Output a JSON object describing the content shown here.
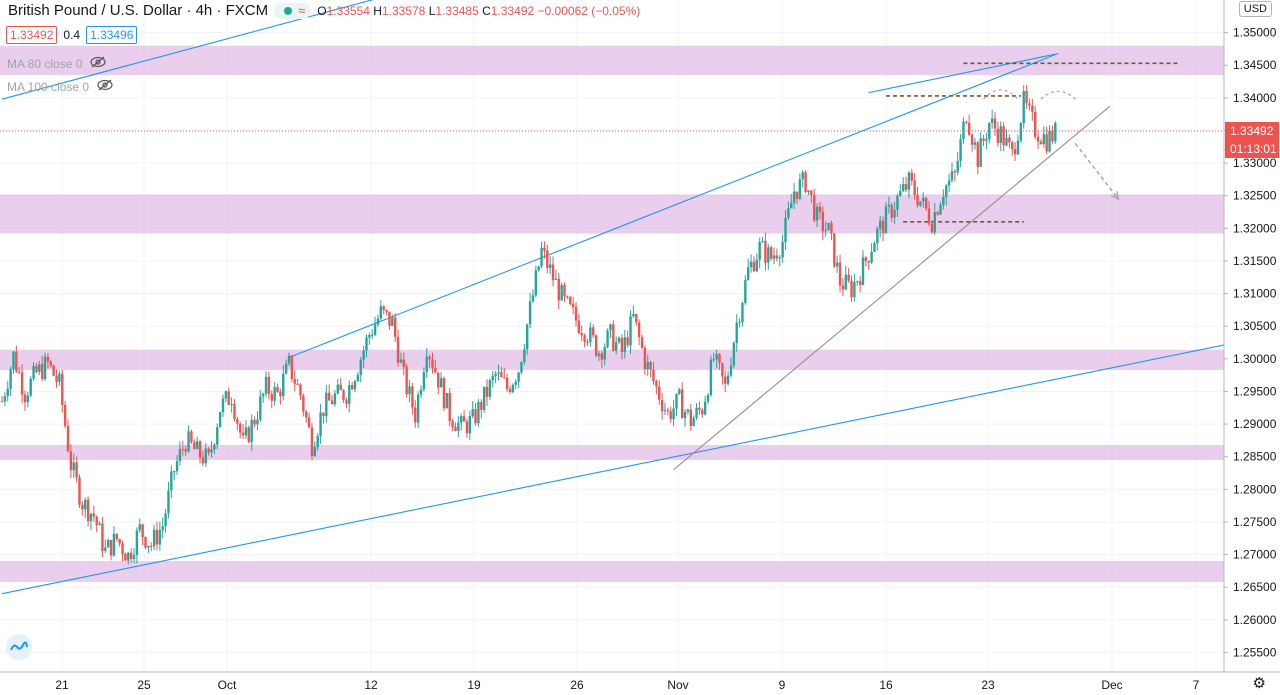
{
  "header": {
    "symbol": "British Pound / U.S. Dollar · 4h · FXCM",
    "ohlc": {
      "o_label": "O",
      "o": "1.33554",
      "h_label": "H",
      "h": "1.33578",
      "l_label": "L",
      "l": "1.33485",
      "c_label": "C",
      "c": "1.33492",
      "change": "−0.00062 (−0.05%)"
    },
    "bid": "1.33492",
    "spread": "0.4",
    "ask": "1.33496",
    "indicators": [
      {
        "label": "MA 80 close 0"
      },
      {
        "label": "MA 100 close 0"
      }
    ],
    "currency": "USD"
  },
  "chart_data": {
    "type": "candlestick",
    "y_axis": {
      "range": [
        1.252,
        1.355
      ],
      "ticks": [
        "1.35000",
        "1.34500",
        "1.34000",
        "1.33500",
        "1.33000",
        "1.32500",
        "1.32000",
        "1.31500",
        "1.31000",
        "1.30500",
        "1.30000",
        "1.29500",
        "1.29000",
        "1.28500",
        "1.28000",
        "1.27500",
        "1.27000",
        "1.26500",
        "1.26000",
        "1.25500"
      ]
    },
    "x_axis": {
      "ticks": [
        "21",
        "25",
        "Oct",
        "12",
        "19",
        "26",
        "Nov",
        "9",
        "16",
        "23",
        "Dec",
        "7"
      ]
    },
    "last_price": {
      "value": "1.33492",
      "countdown": "01:13:01",
      "color": "#ef5350"
    },
    "colors": {
      "up": "#26a69a",
      "down": "#ef5350",
      "zone": "#e1bee7",
      "channel": "#2196f3",
      "trend": "#a1887f",
      "level": "#6d5a3a",
      "projection": "#9e9e9e"
    },
    "zones": [
      {
        "from": 1.3435,
        "to": 1.348
      },
      {
        "from": 1.3192,
        "to": 1.3252
      },
      {
        "from": 1.2983,
        "to": 1.3014
      },
      {
        "from": 1.2845,
        "to": 1.2868
      },
      {
        "from": 1.2658,
        "to": 1.269
      }
    ],
    "levels": [
      {
        "day": 33.5,
        "to_day": 41.0,
        "price": 1.3453
      },
      {
        "day": 30.8,
        "to_day": 35.5,
        "price": 1.3403
      },
      {
        "day": 31.4,
        "to_day": 35.6,
        "price": 1.321
      }
    ],
    "channel_lines": [
      {
        "x1": 0.0,
        "y1": 1.3398,
        "x2": 15.0,
        "y2": 1.3575
      },
      {
        "x1": 0.0,
        "y1": 1.264,
        "x2": 43.0,
        "y2": 1.3025
      },
      {
        "x1": 10.0,
        "y1": 1.3002,
        "x2": 36.8,
        "y2": 1.3468
      },
      {
        "x1": 30.2,
        "y1": 1.3408,
        "x2": 36.7,
        "y2": 1.3467
      }
    ],
    "trend_lines": [
      {
        "x1": 23.4,
        "y1": 1.283,
        "x2": 38.6,
        "y2": 1.3387
      }
    ],
    "projection": {
      "x1": 37.4,
      "y1": 1.333,
      "x2": 38.9,
      "y2": 1.3245
    },
    "arcs": [
      {
        "from": 34.2,
        "to": 35.4,
        "peak": 1.3414
      },
      {
        "from": 36.2,
        "to": 37.4,
        "peak": 1.341
      }
    ],
    "series": [
      {
        "day": 0,
        "price": 1.2935
      },
      {
        "day": 0.4,
        "price": 1.3005
      },
      {
        "day": 0.8,
        "price": 1.2948
      },
      {
        "day": 1.2,
        "price": 1.2978
      },
      {
        "day": 1.6,
        "price": 1.2992
      },
      {
        "day": 2.0,
        "price": 1.296
      },
      {
        "day": 2.4,
        "price": 1.2838
      },
      {
        "day": 2.8,
        "price": 1.278
      },
      {
        "day": 3.2,
        "price": 1.276
      },
      {
        "day": 3.6,
        "price": 1.2705
      },
      {
        "day": 4.0,
        "price": 1.2724
      },
      {
        "day": 4.4,
        "price": 1.2698
      },
      {
        "day": 4.8,
        "price": 1.2738
      },
      {
        "day": 5.2,
        "price": 1.2715
      },
      {
        "day": 5.6,
        "price": 1.2745
      },
      {
        "day": 6.0,
        "price": 1.283
      },
      {
        "day": 6.4,
        "price": 1.2875
      },
      {
        "day": 6.8,
        "price": 1.2856
      },
      {
        "day": 7.2,
        "price": 1.2844
      },
      {
        "day": 7.6,
        "price": 1.2925
      },
      {
        "day": 8.0,
        "price": 1.2945
      },
      {
        "day": 8.4,
        "price": 1.2868
      },
      {
        "day": 8.8,
        "price": 1.2908
      },
      {
        "day": 9.2,
        "price": 1.2955
      },
      {
        "day": 9.6,
        "price": 1.2945
      },
      {
        "day": 10.0,
        "price": 1.299
      },
      {
        "day": 10.4,
        "price": 1.2945
      },
      {
        "day": 10.8,
        "price": 1.287
      },
      {
        "day": 11.2,
        "price": 1.2925
      },
      {
        "day": 11.6,
        "price": 1.2942
      },
      {
        "day": 12.0,
        "price": 1.2948
      },
      {
        "day": 12.4,
        "price": 1.299
      },
      {
        "day": 12.8,
        "price": 1.3038
      },
      {
        "day": 13.2,
        "price": 1.307
      },
      {
        "day": 13.6,
        "price": 1.3055
      },
      {
        "day": 14.0,
        "price": 1.297
      },
      {
        "day": 14.4,
        "price": 1.2915
      },
      {
        "day": 14.8,
        "price": 1.3022
      },
      {
        "day": 15.2,
        "price": 1.297
      },
      {
        "day": 15.6,
        "price": 1.2915
      },
      {
        "day": 16.0,
        "price": 1.2895
      },
      {
        "day": 16.4,
        "price": 1.2905
      },
      {
        "day": 16.8,
        "price": 1.294
      },
      {
        "day": 17.2,
        "price": 1.2975
      },
      {
        "day": 17.6,
        "price": 1.2955
      },
      {
        "day": 18.0,
        "price": 1.2985
      },
      {
        "day": 18.4,
        "price": 1.3075
      },
      {
        "day": 18.8,
        "price": 1.3165
      },
      {
        "day": 19.2,
        "price": 1.3125
      },
      {
        "day": 19.6,
        "price": 1.3085
      },
      {
        "day": 20.0,
        "price": 1.306
      },
      {
        "day": 20.4,
        "price": 1.304
      },
      {
        "day": 20.8,
        "price": 1.3012
      },
      {
        "day": 21.2,
        "price": 1.3035
      },
      {
        "day": 21.6,
        "price": 1.301
      },
      {
        "day": 22.0,
        "price": 1.3062
      },
      {
        "day": 22.4,
        "price": 1.2998
      },
      {
        "day": 22.8,
        "price": 1.2955
      },
      {
        "day": 23.2,
        "price": 1.2915
      },
      {
        "day": 23.6,
        "price": 1.2935
      },
      {
        "day": 24.0,
        "price": 1.2905
      },
      {
        "day": 24.4,
        "price": 1.2925
      },
      {
        "day": 24.8,
        "price": 1.3
      },
      {
        "day": 25.2,
        "price": 1.2955
      },
      {
        "day": 25.6,
        "price": 1.3055
      },
      {
        "day": 26.0,
        "price": 1.3135
      },
      {
        "day": 26.4,
        "price": 1.317
      },
      {
        "day": 26.8,
        "price": 1.3155
      },
      {
        "day": 27.2,
        "price": 1.318
      },
      {
        "day": 27.6,
        "price": 1.3258
      },
      {
        "day": 28.0,
        "price": 1.3272
      },
      {
        "day": 28.4,
        "price": 1.3215
      },
      {
        "day": 28.8,
        "price": 1.3195
      },
      {
        "day": 29.2,
        "price": 1.3118
      },
      {
        "day": 29.6,
        "price": 1.3108
      },
      {
        "day": 30.0,
        "price": 1.314
      },
      {
        "day": 30.4,
        "price": 1.3185
      },
      {
        "day": 30.8,
        "price": 1.3215
      },
      {
        "day": 31.2,
        "price": 1.3245
      },
      {
        "day": 31.6,
        "price": 1.327
      },
      {
        "day": 32.0,
        "price": 1.3242
      },
      {
        "day": 32.4,
        "price": 1.3212
      },
      {
        "day": 32.8,
        "price": 1.326
      },
      {
        "day": 33.2,
        "price": 1.328
      },
      {
        "day": 33.6,
        "price": 1.3378
      },
      {
        "day": 34.0,
        "price": 1.3308
      },
      {
        "day": 34.4,
        "price": 1.3362
      },
      {
        "day": 34.8,
        "price": 1.3345
      },
      {
        "day": 35.2,
        "price": 1.3312
      },
      {
        "day": 35.6,
        "price": 1.3392
      },
      {
        "day": 36.0,
        "price": 1.3352
      },
      {
        "day": 36.4,
        "price": 1.3336
      },
      {
        "day": 36.8,
        "price": 1.3349
      }
    ]
  }
}
